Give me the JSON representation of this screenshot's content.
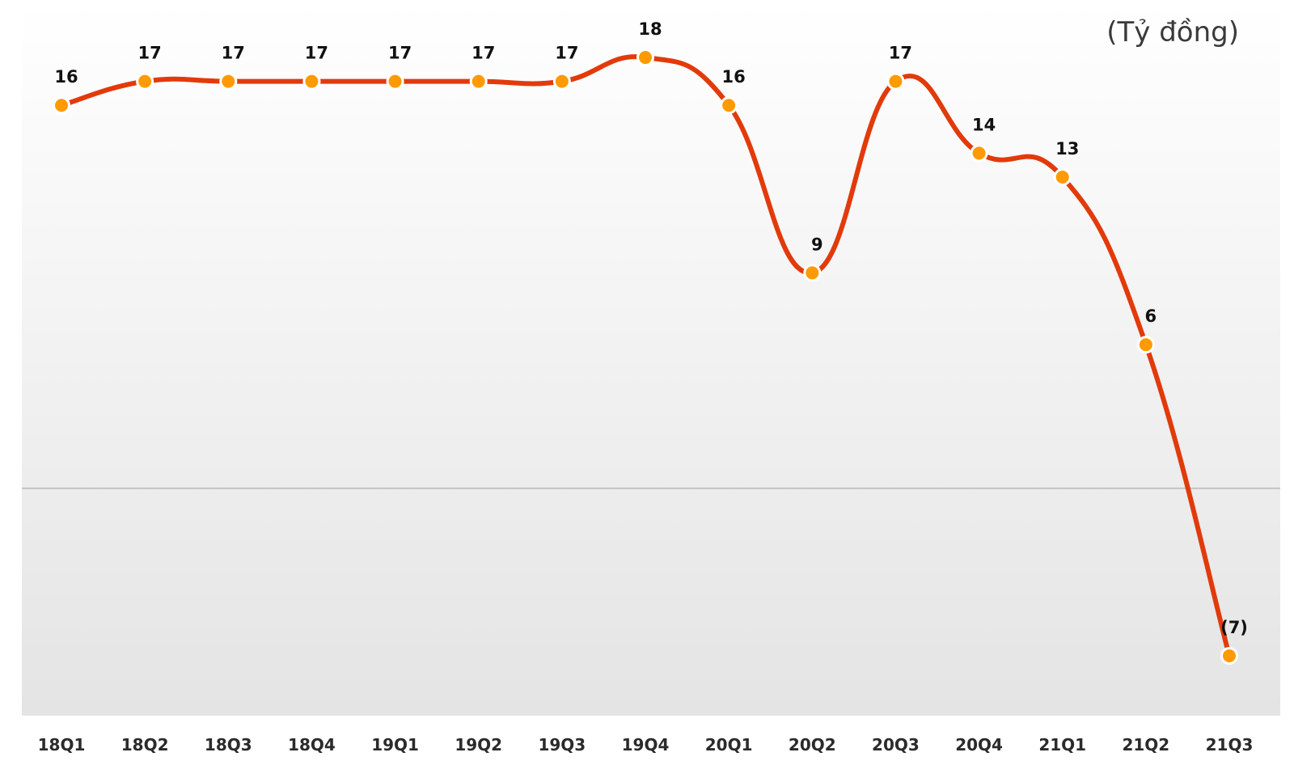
{
  "chart_data": {
    "type": "line",
    "unit_label": "(Tỷ đồng)",
    "categories": [
      "18Q1",
      "18Q2",
      "18Q3",
      "18Q4",
      "19Q1",
      "19Q2",
      "19Q3",
      "19Q4",
      "20Q1",
      "20Q2",
      "20Q3",
      "20Q4",
      "21Q1",
      "21Q2",
      "21Q3"
    ],
    "values": [
      16,
      17,
      17,
      17,
      17,
      17,
      17,
      18,
      16,
      9,
      17,
      14,
      13,
      6,
      -7
    ],
    "data_labels": [
      "16",
      "17",
      "17",
      "17",
      "17",
      "17",
      "17",
      "18",
      "16",
      "9",
      "17",
      "14",
      "13",
      "6",
      "(7)"
    ],
    "ylim": [
      -9.5,
      20.4
    ],
    "grid": false,
    "legend": "none",
    "colors": {
      "line": "#e23a0b",
      "marker": "#ff9a00",
      "marker_outline": "#ffffff",
      "zero_line": "#c4c4c4",
      "bg_top": "#ffffff",
      "bg_bottom": "#e4e4e4"
    }
  }
}
